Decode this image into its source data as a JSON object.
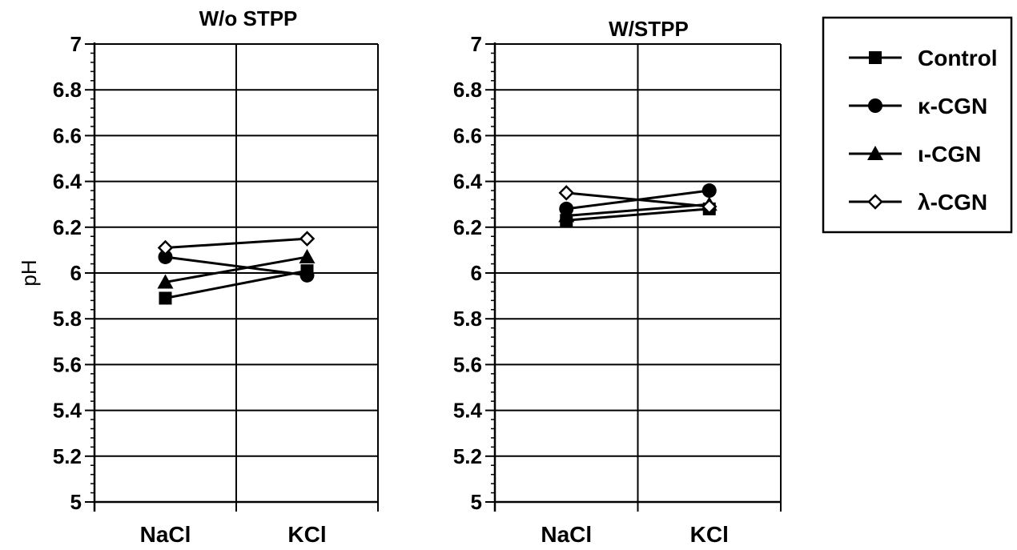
{
  "chart_data": [
    {
      "type": "line",
      "title": "W/o STPP",
      "xlabel": "",
      "ylabel": "pH",
      "categories": [
        "NaCl",
        "KCl"
      ],
      "ylim": [
        5,
        7
      ],
      "yticks": [
        "5",
        "5.2",
        "5.4",
        "5.6",
        "5.8",
        "6",
        "6.2",
        "6.4",
        "6.6",
        "6.8",
        "7"
      ],
      "grid": true,
      "series": [
        {
          "name": "Control",
          "marker": "square",
          "values": [
            5.89,
            6.01
          ]
        },
        {
          "name": "κ-CGN",
          "marker": "circle",
          "values": [
            6.07,
            5.99
          ]
        },
        {
          "name": "ι-CGN",
          "marker": "triangle",
          "values": [
            5.96,
            6.07
          ]
        },
        {
          "name": "λ-CGN",
          "marker": "diamond",
          "values": [
            6.11,
            6.15
          ]
        }
      ]
    },
    {
      "type": "line",
      "title": "W/STPP",
      "xlabel": "",
      "ylabel": "",
      "categories": [
        "NaCl",
        "KCl"
      ],
      "ylim": [
        5,
        7
      ],
      "yticks": [
        "5",
        "5.2",
        "5.4",
        "5.6",
        "5.8",
        "6",
        "6.2",
        "6.4",
        "6.6",
        "6.8",
        "7"
      ],
      "grid": true,
      "series": [
        {
          "name": "Control",
          "marker": "square",
          "values": [
            6.23,
            6.28
          ]
        },
        {
          "name": "κ-CGN",
          "marker": "circle",
          "values": [
            6.28,
            6.36
          ]
        },
        {
          "name": "ι-CGN",
          "marker": "triangle",
          "values": [
            6.25,
            6.3
          ]
        },
        {
          "name": "λ-CGN",
          "marker": "diamond",
          "values": [
            6.35,
            6.29
          ]
        }
      ]
    }
  ],
  "legend": {
    "placement": "right",
    "items": [
      {
        "label": "Control",
        "marker": "square"
      },
      {
        "label": "κ-CGN",
        "marker": "circle"
      },
      {
        "label": "ι-CGN",
        "marker": "triangle"
      },
      {
        "label": "λ-CGN",
        "marker": "diamond"
      }
    ]
  }
}
